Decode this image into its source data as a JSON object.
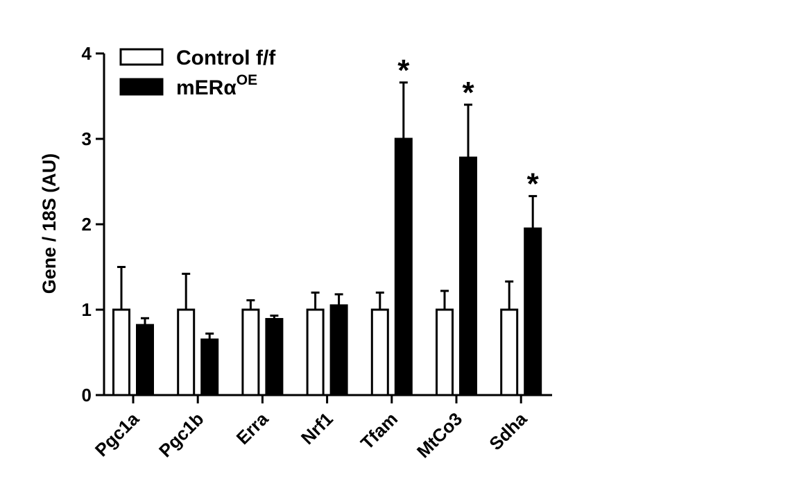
{
  "chart_data": {
    "type": "bar",
    "ylabel": "Gene / 18S (AU)",
    "xlabel": "",
    "ylim": [
      0,
      4
    ],
    "yticks": [
      0,
      1,
      2,
      3,
      4
    ],
    "categories": [
      "Pgc1a",
      "Pgc1b",
      "Erra",
      "Nrf1",
      "Tfam",
      "MtCo3",
      "Sdha"
    ],
    "series": [
      {
        "name": "Control f/f",
        "fill": "#ffffff",
        "values": [
          1.0,
          1.0,
          1.0,
          1.0,
          1.0,
          1.0,
          1.0
        ],
        "errors": [
          0.5,
          0.42,
          0.11,
          0.2,
          0.2,
          0.22,
          0.33
        ]
      },
      {
        "name": "mERα",
        "name_sup": "OE",
        "fill": "#000000",
        "values": [
          0.82,
          0.65,
          0.89,
          1.05,
          3.0,
          2.78,
          1.95
        ],
        "errors": [
          0.08,
          0.07,
          0.04,
          0.13,
          0.66,
          0.62,
          0.38
        ]
      }
    ],
    "significance_marker": "*",
    "significant": [
      {
        "category": "Tfam",
        "series": 1
      },
      {
        "category": "MtCo3",
        "series": 1
      },
      {
        "category": "Sdha",
        "series": 1
      }
    ],
    "legend_position": "top-left",
    "grid": false
  }
}
